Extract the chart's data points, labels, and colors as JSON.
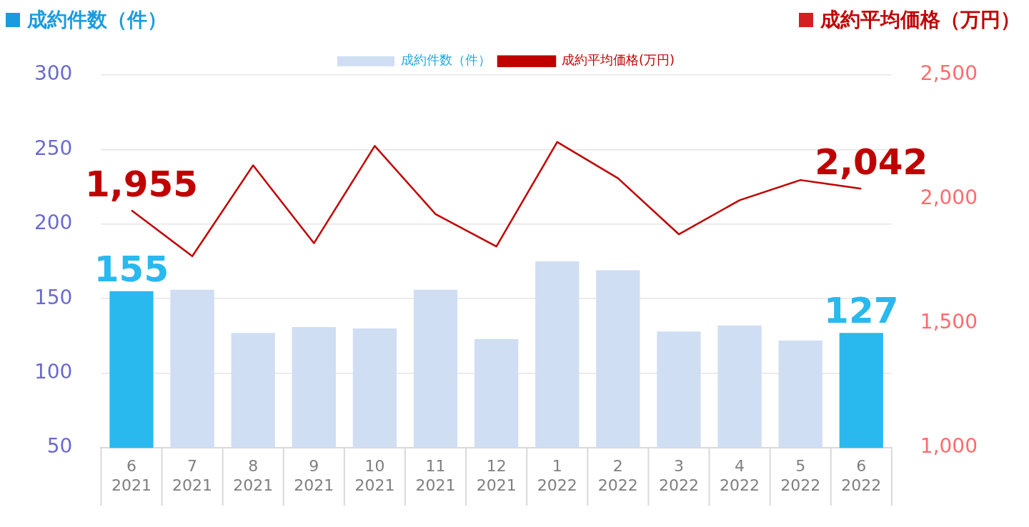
{
  "chart_data": {
    "type": "line",
    "ylabel": "成約件数（件）",
    "y2label": "成約平均価格（万円）",
    "categories": [
      "6\n2021",
      "7\n2021",
      "8\n2021",
      "9\n2021",
      "10\n2021",
      "11\n2021",
      "12\n2021",
      "1\n2022",
      "2\n2022",
      "3\n2022",
      "4\n2022",
      "5\n2022",
      "6\n2022"
    ],
    "series": [
      {
        "name": "成約件数（件）",
        "type": "bar",
        "color": "#cfdef3",
        "colors": [
          "#29b9ee",
          "#cfdef3",
          "#cfdef3",
          "#cfdef3",
          "#cfdef3",
          "#cfdef3",
          "#cfdef3",
          "#cfdef3",
          "#cfdef3",
          "#cfdef3",
          "#cfdef3",
          "#cfdef3",
          "#29b9ee"
        ],
        "values": [
          155,
          156,
          127,
          131,
          130,
          156,
          123,
          175,
          169,
          128,
          132,
          122,
          127
        ],
        "value_labels": [
          "155",
          null,
          null,
          null,
          null,
          null,
          null,
          null,
          null,
          null,
          null,
          null,
          "127"
        ]
      },
      {
        "name": "成約平均価格(万円)",
        "axis": "y2",
        "color": "#c00000",
        "marker": "none",
        "line_style": "solid",
        "values": [
          1955,
          1771,
          2136,
          1823,
          2214,
          1940,
          1810,
          2230,
          2084,
          1859,
          1996,
          2077,
          2042
        ],
        "value_labels": [
          "1,955",
          null,
          null,
          null,
          null,
          null,
          null,
          null,
          null,
          null,
          null,
          null,
          "2,042"
        ]
      }
    ],
    "ylim": [
      50,
      300
    ],
    "yticks": [
      50,
      100,
      150,
      200,
      250,
      300
    ],
    "y2lim": [
      1000,
      2500
    ],
    "y2ticks": [
      {
        "value": 1000,
        "label": "1,000"
      },
      {
        "value": 1500,
        "label": "1,500"
      },
      {
        "value": 2000,
        "label": "2,000"
      },
      {
        "value": 2500,
        "label": "2,500"
      }
    ],
    "grid": "y",
    "legend": "top"
  }
}
